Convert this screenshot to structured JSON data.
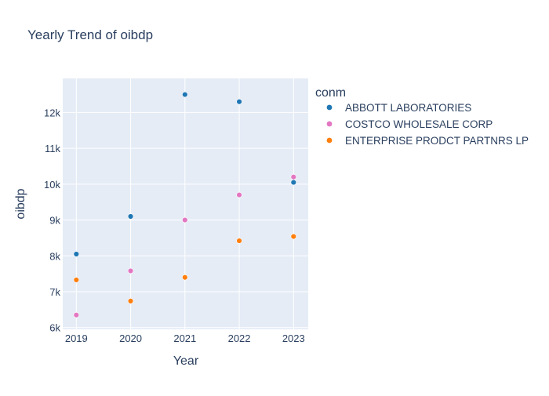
{
  "chart_data": {
    "type": "scatter",
    "title": "Yearly Trend of oibdp",
    "xlabel": "Year",
    "ylabel": "oibdp",
    "x": [
      2019,
      2020,
      2021,
      2022,
      2023
    ],
    "xlim": [
      2018.75,
      2023.27
    ],
    "ylim": [
      5950,
      12950
    ],
    "x_ticks": [
      "2019",
      "2020",
      "2021",
      "2022",
      "2023"
    ],
    "y_ticks": [
      {
        "value": 6000,
        "label": "6k"
      },
      {
        "value": 7000,
        "label": "7k"
      },
      {
        "value": 8000,
        "label": "8k"
      },
      {
        "value": 9000,
        "label": "9k"
      },
      {
        "value": 10000,
        "label": "10k"
      },
      {
        "value": 11000,
        "label": "11k"
      },
      {
        "value": 12000,
        "label": "12k"
      }
    ],
    "grid": true,
    "legend": {
      "title": "conm",
      "placement": "top-right"
    },
    "series": [
      {
        "name": "ABBOTT LABORATORIES",
        "color": "#1f77b4",
        "values": [
          8050,
          9100,
          12500,
          12300,
          10050
        ]
      },
      {
        "name": "COSTCO WHOLESALE CORP",
        "color": "#e377c2",
        "values": [
          6350,
          7580,
          9000,
          9700,
          10200
        ]
      },
      {
        "name": "ENTERPRISE PRODCT PARTNRS LP",
        "color": "#ff7f0e",
        "values": [
          7330,
          6740,
          7400,
          8420,
          8540
        ]
      }
    ]
  }
}
